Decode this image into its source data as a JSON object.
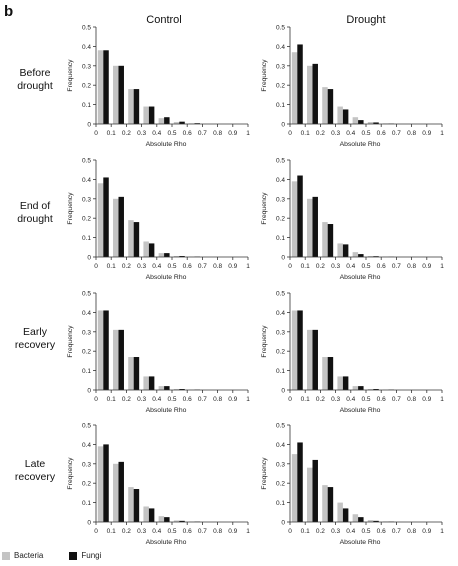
{
  "panel_letter": "b",
  "legend": {
    "series": [
      {
        "name": "Bacteria",
        "color": "#c4c4c4"
      },
      {
        "name": "Fungi",
        "color": "#111111"
      }
    ]
  },
  "chart_data": [
    {
      "type": "bar",
      "column": "Control",
      "row": "Before drought",
      "xlabel": "Absolute Rho",
      "ylabel": "Frequency",
      "ylim": [
        0,
        0.5
      ],
      "xlim": [
        0,
        1
      ],
      "x_ticks": [
        "0",
        "0.1",
        "0.2",
        "0.3",
        "0.4",
        "0.5",
        "0.6",
        "0.7",
        "0.8",
        "0.9",
        "1"
      ],
      "y_ticks": [
        "0",
        "0.1",
        "0.2",
        "0.3",
        "0.4",
        "0.5"
      ],
      "bin_starts": [
        0,
        0.1,
        0.2,
        0.3,
        0.4,
        0.5,
        0.6,
        0.7,
        0.8,
        0.9
      ],
      "series": [
        {
          "name": "Bacteria",
          "values": [
            0.38,
            0.3,
            0.18,
            0.09,
            0.03,
            0.01,
            0.003,
            0,
            0,
            0
          ]
        },
        {
          "name": "Fungi",
          "values": [
            0.38,
            0.3,
            0.18,
            0.09,
            0.035,
            0.012,
            0.004,
            0,
            0,
            0
          ]
        }
      ]
    },
    {
      "type": "bar",
      "column": "Drought",
      "row": "Before drought",
      "xlabel": "Absolute Rho",
      "ylabel": "Frequency",
      "ylim": [
        0,
        0.5
      ],
      "xlim": [
        0,
        1
      ],
      "x_ticks": [
        "0",
        "0.1",
        "0.2",
        "0.3",
        "0.4",
        "0.5",
        "0.6",
        "0.7",
        "0.8",
        "0.9",
        "1"
      ],
      "y_ticks": [
        "0",
        "0.1",
        "0.2",
        "0.3",
        "0.4",
        "0.5"
      ],
      "bin_starts": [
        0,
        0.1,
        0.2,
        0.3,
        0.4,
        0.5,
        0.6,
        0.7,
        0.8,
        0.9
      ],
      "series": [
        {
          "name": "Bacteria",
          "values": [
            0.37,
            0.3,
            0.19,
            0.09,
            0.035,
            0.01,
            0.003,
            0,
            0,
            0
          ]
        },
        {
          "name": "Fungi",
          "values": [
            0.41,
            0.31,
            0.18,
            0.075,
            0.02,
            0.008,
            0.002,
            0,
            0,
            0
          ]
        }
      ]
    },
    {
      "type": "bar",
      "column": "Control",
      "row": "End of drought",
      "xlabel": "Absolute Rho",
      "ylabel": "Frequency",
      "ylim": [
        0,
        0.5
      ],
      "xlim": [
        0,
        1
      ],
      "x_ticks": [
        "0",
        "0.1",
        "0.2",
        "0.3",
        "0.4",
        "0.5",
        "0.6",
        "0.7",
        "0.8",
        "0.9",
        "1"
      ],
      "y_ticks": [
        "0",
        "0.1",
        "0.2",
        "0.3",
        "0.4",
        "0.5"
      ],
      "bin_starts": [
        0,
        0.1,
        0.2,
        0.3,
        0.4,
        0.5,
        0.6,
        0.7,
        0.8,
        0.9
      ],
      "series": [
        {
          "name": "Bacteria",
          "values": [
            0.38,
            0.3,
            0.19,
            0.08,
            0.02,
            0.005,
            0.002,
            0,
            0,
            0
          ]
        },
        {
          "name": "Fungi",
          "values": [
            0.41,
            0.31,
            0.18,
            0.07,
            0.02,
            0.005,
            0.002,
            0,
            0,
            0
          ]
        }
      ]
    },
    {
      "type": "bar",
      "column": "Drought",
      "row": "End of drought",
      "xlabel": "Absolute Rho",
      "ylabel": "Frequency",
      "ylim": [
        0,
        0.5
      ],
      "xlim": [
        0,
        1
      ],
      "x_ticks": [
        "0",
        "0.1",
        "0.2",
        "0.3",
        "0.4",
        "0.5",
        "0.6",
        "0.7",
        "0.8",
        "0.9",
        "1"
      ],
      "y_ticks": [
        "0",
        "0.1",
        "0.2",
        "0.3",
        "0.4",
        "0.5"
      ],
      "bin_starts": [
        0,
        0.1,
        0.2,
        0.3,
        0.4,
        0.5,
        0.6,
        0.7,
        0.8,
        0.9
      ],
      "series": [
        {
          "name": "Bacteria",
          "values": [
            0.39,
            0.3,
            0.18,
            0.07,
            0.025,
            0.005,
            0.002,
            0,
            0,
            0
          ]
        },
        {
          "name": "Fungi",
          "values": [
            0.42,
            0.31,
            0.17,
            0.065,
            0.015,
            0.004,
            0.001,
            0,
            0,
            0
          ]
        }
      ]
    },
    {
      "type": "bar",
      "column": "Control",
      "row": "Early recovery",
      "xlabel": "Absolute Rho",
      "ylabel": "Frequency",
      "ylim": [
        0,
        0.5
      ],
      "xlim": [
        0,
        1
      ],
      "x_ticks": [
        "0",
        "0.1",
        "0.2",
        "0.3",
        "0.4",
        "0.5",
        "0.6",
        "0.7",
        "0.8",
        "0.9",
        "1"
      ],
      "y_ticks": [
        "0",
        "0.1",
        "0.2",
        "0.3",
        "0.4",
        "0.5"
      ],
      "bin_starts": [
        0,
        0.1,
        0.2,
        0.3,
        0.4,
        0.5,
        0.6,
        0.7,
        0.8,
        0.9
      ],
      "series": [
        {
          "name": "Bacteria",
          "values": [
            0.41,
            0.31,
            0.17,
            0.07,
            0.02,
            0.005,
            0.002,
            0,
            0,
            0
          ]
        },
        {
          "name": "Fungi",
          "values": [
            0.41,
            0.31,
            0.17,
            0.07,
            0.02,
            0.005,
            0.002,
            0,
            0,
            0
          ]
        }
      ]
    },
    {
      "type": "bar",
      "column": "Drought",
      "row": "Early recovery",
      "xlabel": "Absolute Rho",
      "ylabel": "Frequency",
      "ylim": [
        0,
        0.5
      ],
      "xlim": [
        0,
        1
      ],
      "x_ticks": [
        "0",
        "0.1",
        "0.2",
        "0.3",
        "0.4",
        "0.5",
        "0.6",
        "0.7",
        "0.8",
        "0.9",
        "1"
      ],
      "y_ticks": [
        "0",
        "0.1",
        "0.2",
        "0.3",
        "0.4",
        "0.5"
      ],
      "bin_starts": [
        0,
        0.1,
        0.2,
        0.3,
        0.4,
        0.5,
        0.6,
        0.7,
        0.8,
        0.9
      ],
      "series": [
        {
          "name": "Bacteria",
          "values": [
            0.41,
            0.31,
            0.17,
            0.07,
            0.02,
            0.005,
            0.002,
            0,
            0,
            0
          ]
        },
        {
          "name": "Fungi",
          "values": [
            0.41,
            0.31,
            0.17,
            0.07,
            0.02,
            0.005,
            0.002,
            0,
            0,
            0
          ]
        }
      ]
    },
    {
      "type": "bar",
      "column": "Control",
      "row": "Late recovery",
      "xlabel": "Absolute Rho",
      "ylabel": "Frequency",
      "ylim": [
        0,
        0.5
      ],
      "xlim": [
        0,
        1
      ],
      "x_ticks": [
        "0",
        "0.1",
        "0.2",
        "0.3",
        "0.4",
        "0.5",
        "0.6",
        "0.7",
        "0.8",
        "0.9",
        "1"
      ],
      "y_ticks": [
        "0",
        "0.1",
        "0.2",
        "0.3",
        "0.4",
        "0.5"
      ],
      "bin_starts": [
        0,
        0.1,
        0.2,
        0.3,
        0.4,
        0.5,
        0.6,
        0.7,
        0.8,
        0.9
      ],
      "series": [
        {
          "name": "Bacteria",
          "values": [
            0.39,
            0.3,
            0.18,
            0.08,
            0.03,
            0.008,
            0.002,
            0,
            0,
            0
          ]
        },
        {
          "name": "Fungi",
          "values": [
            0.4,
            0.31,
            0.17,
            0.07,
            0.025,
            0.006,
            0.002,
            0,
            0,
            0
          ]
        }
      ]
    },
    {
      "type": "bar",
      "column": "Drought",
      "row": "Late recovery",
      "xlabel": "Absolute Rho",
      "ylabel": "Frequency",
      "ylim": [
        0,
        0.5
      ],
      "xlim": [
        0,
        1
      ],
      "x_ticks": [
        "0",
        "0.1",
        "0.2",
        "0.3",
        "0.4",
        "0.5",
        "0.6",
        "0.7",
        "0.8",
        "0.9",
        "1"
      ],
      "y_ticks": [
        "0",
        "0.1",
        "0.2",
        "0.3",
        "0.4",
        "0.5"
      ],
      "bin_starts": [
        0,
        0.1,
        0.2,
        0.3,
        0.4,
        0.5,
        0.6,
        0.7,
        0.8,
        0.9
      ],
      "series": [
        {
          "name": "Bacteria",
          "values": [
            0.35,
            0.28,
            0.19,
            0.1,
            0.04,
            0.01,
            0.003,
            0,
            0,
            0
          ]
        },
        {
          "name": "Fungi",
          "values": [
            0.41,
            0.32,
            0.18,
            0.07,
            0.025,
            0.006,
            0.002,
            0,
            0,
            0
          ]
        }
      ]
    }
  ],
  "columns": [
    "Control",
    "Drought"
  ],
  "rows": [
    "Before\ndrought",
    "End of\ndrought",
    "Early\nrecovery",
    "Late\nrecovery"
  ]
}
